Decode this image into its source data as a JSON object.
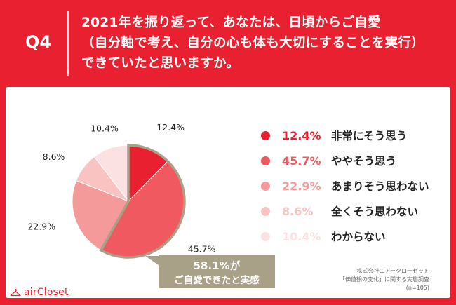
{
  "header": {
    "q_label": "Q4",
    "question_lines": [
      "2021年を振り返って、あなたは、日頃からご自愛",
      "（自分軸で考え、自分の心も体も大切にすることを実行）",
      "できていたと思いますか。"
    ]
  },
  "chart_data": {
    "type": "pie",
    "categories": [
      "非常にそう思う",
      "ややそう思う",
      "あまりそう思わない",
      "全くそう思わない",
      "わからない"
    ],
    "values": [
      12.4,
      45.7,
      22.9,
      8.6,
      10.4
    ],
    "value_labels": [
      "12.4%",
      "45.7%",
      "22.9%",
      "8.6%",
      "10.4%"
    ],
    "colors": [
      "#e8202f",
      "#f0595f",
      "#f59a9a",
      "#f8c3c0",
      "#fbe1e1"
    ],
    "legend_placement": "right",
    "highlighted_categories": [
      "非常にそう思う",
      "ややそう思う"
    ],
    "highlight_color": "#a9a088"
  },
  "callout": {
    "line1": "58.1%が",
    "line2": "ご自愛できたと実感"
  },
  "brand": {
    "name": "airCloset"
  },
  "source": {
    "lines": [
      "株式会社エアークローゼット",
      "「価値観の変化」に関する実態調査",
      "(n=105)"
    ]
  }
}
